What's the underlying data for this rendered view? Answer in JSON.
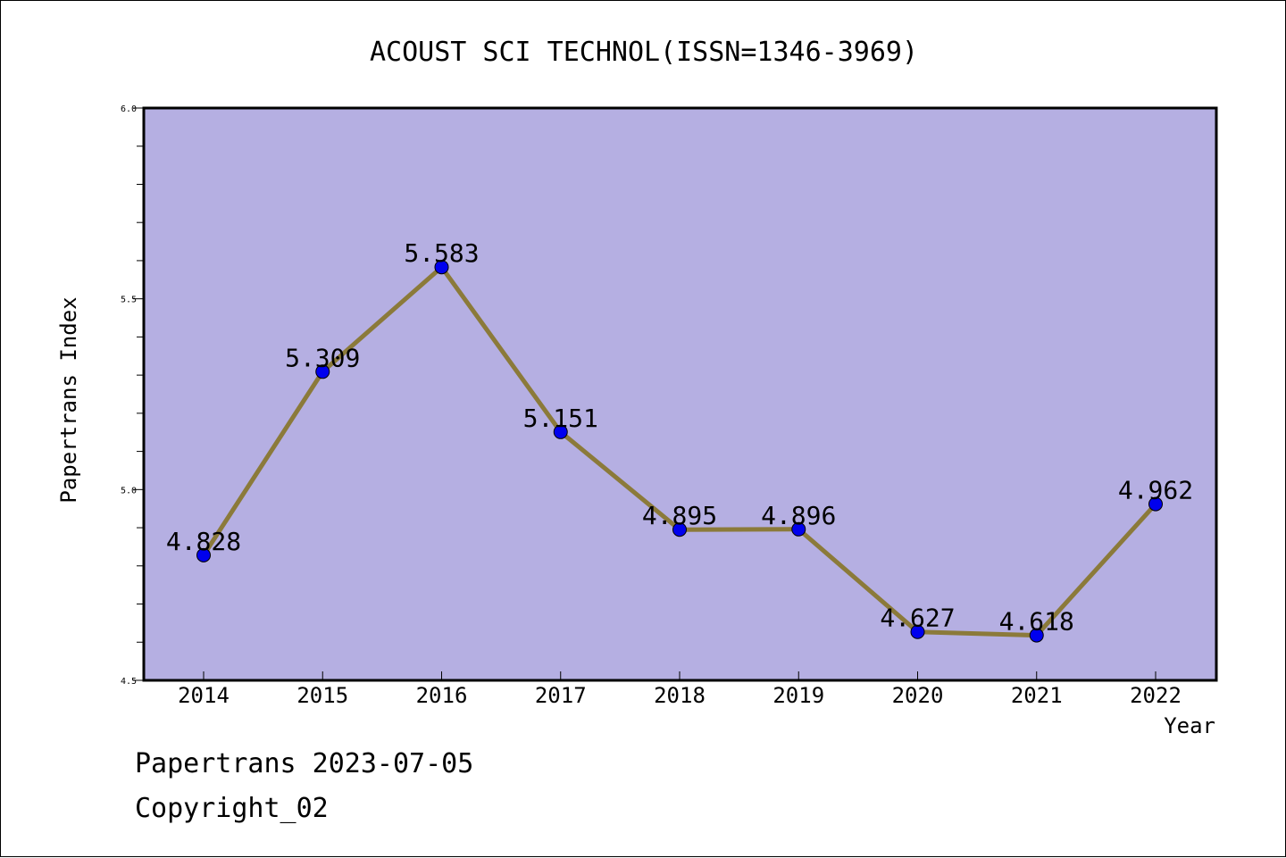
{
  "chart_data": {
    "type": "line",
    "title": "ACOUST SCI TECHNOL(ISSN=1346-3969)",
    "xlabel": "Year",
    "ylabel": "Papertrans Index",
    "categories": [
      "2014",
      "2015",
      "2016",
      "2017",
      "2018",
      "2019",
      "2020",
      "2021",
      "2022"
    ],
    "series": [
      {
        "values": [
          4.828,
          5.309,
          5.583,
          5.151,
          4.895,
          4.896,
          4.627,
          4.618,
          4.962
        ],
        "labels": [
          "4.828",
          "5.309",
          "5.583",
          "5.151",
          "4.895",
          "4.896",
          "4.627",
          "4.618",
          "4.962"
        ]
      }
    ],
    "ylim": [
      4.5,
      6.0
    ],
    "yticks": [
      "4.5",
      "5.0",
      "5.5",
      "6.0"
    ],
    "ytick_values": [
      4.5,
      5.0,
      5.5,
      6.0
    ],
    "grid": false,
    "legend": "none",
    "colors": {
      "plot_background": "#b5afe2",
      "line": "#8b7a3a",
      "marker": "#0000ee"
    }
  },
  "footer": {
    "line1": "Papertrans 2023-07-05",
    "line2": "Copyright_02"
  }
}
